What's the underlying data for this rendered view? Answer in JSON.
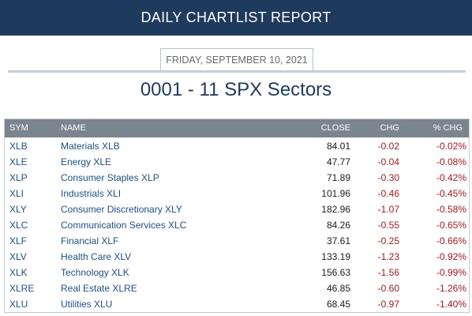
{
  "header": {
    "title": "DAILY CHARTLIST REPORT"
  },
  "report_date": "FRIDAY, SEPTEMBER 10, 2021",
  "chartlist_title": "0001 - 11 SPX Sectors",
  "table": {
    "columns": [
      "SYM",
      "NAME",
      "CLOSE",
      "CHG",
      "% CHG"
    ],
    "rows": [
      {
        "sym": "XLB",
        "name": "Materials XLB",
        "close": "84.01",
        "chg": "-0.02",
        "pct": "-0.02%"
      },
      {
        "sym": "XLE",
        "name": "Energy XLE",
        "close": "47.77",
        "chg": "-0.04",
        "pct": "-0.08%"
      },
      {
        "sym": "XLP",
        "name": "Consumer Staples XLP",
        "close": "71.89",
        "chg": "-0.30",
        "pct": "-0.42%"
      },
      {
        "sym": "XLI",
        "name": "Industrials XLI",
        "close": "101.96",
        "chg": "-0.46",
        "pct": "-0.45%"
      },
      {
        "sym": "XLY",
        "name": "Consumer Discretionary XLY",
        "close": "182.96",
        "chg": "-1.07",
        "pct": "-0.58%"
      },
      {
        "sym": "XLC",
        "name": "Communication Services XLC",
        "close": "84.26",
        "chg": "-0.55",
        "pct": "-0.65%"
      },
      {
        "sym": "XLF",
        "name": "Financial XLF",
        "close": "37.61",
        "chg": "-0.25",
        "pct": "-0.66%"
      },
      {
        "sym": "XLV",
        "name": "Health Care XLV",
        "close": "133.19",
        "chg": "-1.23",
        "pct": "-0.92%"
      },
      {
        "sym": "XLK",
        "name": "Technology XLK",
        "close": "156.63",
        "chg": "-1.56",
        "pct": "-0.99%"
      },
      {
        "sym": "XLRE",
        "name": "Real Estate XLRE",
        "close": "46.85",
        "chg": "-0.60",
        "pct": "-1.26%"
      },
      {
        "sym": "XLU",
        "name": "Utilities XLU",
        "close": "68.45",
        "chg": "-0.97",
        "pct": "-1.40%"
      }
    ]
  },
  "colors": {
    "header_bg": "#1e3a5c",
    "link": "#1e4f86",
    "negative": "#a11a1a",
    "table_header_bg": "#7b8590"
  }
}
